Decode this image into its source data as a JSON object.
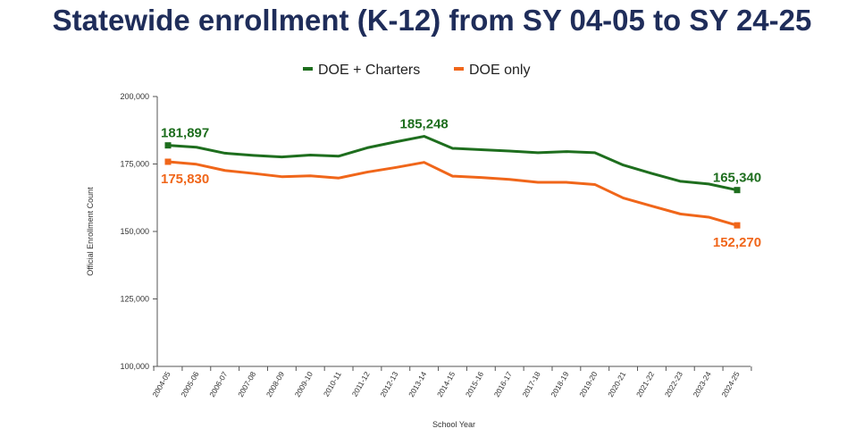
{
  "chart_data": {
    "type": "line",
    "title": "Statewide enrollment (K-12) from SY 04-05 to SY 24-25",
    "xlabel": "School Year",
    "ylabel": "Official Enrollment Count",
    "ylim": [
      100000,
      200000
    ],
    "yticks": [
      100000,
      125000,
      150000,
      175000,
      200000
    ],
    "ytick_labels": [
      "100,000",
      "125,000",
      "150,000",
      "175,000",
      "200,000"
    ],
    "legend_position": "top-center",
    "grid": false,
    "categories": [
      "2004-05",
      "2005-06",
      "2006-07",
      "2007-08",
      "2008-09",
      "2009-10",
      "2010-11",
      "2011-12",
      "2012-13",
      "2013-14",
      "2014-15",
      "2015-16",
      "2016-17",
      "2017-18",
      "2018-19",
      "2019-20",
      "2020-21",
      "2021-22",
      "2022-23",
      "2023-24",
      "2024-25"
    ],
    "series": [
      {
        "name": "DOE + Charters",
        "color": "#1e6e1e",
        "values": [
          181897,
          181200,
          179000,
          178200,
          177600,
          178300,
          177900,
          181000,
          183200,
          185248,
          180800,
          180300,
          179800,
          179200,
          179600,
          179200,
          174600,
          171500,
          168600,
          167600,
          165340
        ],
        "annotations": [
          {
            "index": 0,
            "text": "181,897",
            "placement": "above"
          },
          {
            "index": 9,
            "text": "185,248",
            "placement": "above"
          },
          {
            "index": 20,
            "text": "165,340",
            "placement": "above"
          }
        ]
      },
      {
        "name": "DOE only",
        "color": "#f0661a",
        "values": [
          175830,
          174900,
          172600,
          171500,
          170300,
          170600,
          169800,
          172000,
          173700,
          175600,
          170500,
          170000,
          169300,
          168200,
          168200,
          167400,
          162400,
          159400,
          156500,
          155300,
          152270
        ],
        "annotations": [
          {
            "index": 0,
            "text": "175,830",
            "placement": "below"
          },
          {
            "index": 20,
            "text": "152,270",
            "placement": "below"
          }
        ]
      }
    ]
  }
}
